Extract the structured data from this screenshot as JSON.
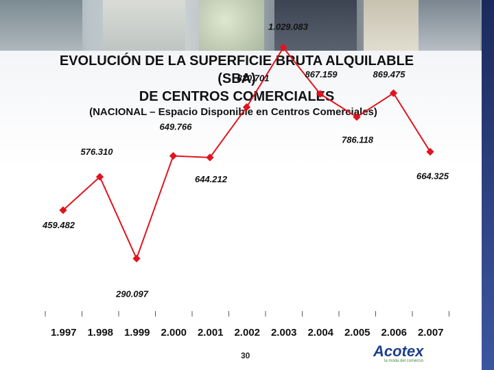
{
  "slide": {
    "title": "EVOLUCIÓN DE LA SUPERFICIE BRUTA ALQUILABLE\n(SBA)\nDE CENTROS COMERCIALES",
    "subtitle": "(NACIONAL – Espacio Disponible en Centros Comerciales)",
    "page_number": "30",
    "logo_text": "Acotex",
    "logo_subtext": "la moda del comercio"
  },
  "colors": {
    "line": "#e0141e",
    "accent_bar": "#1a2a5c"
  },
  "chart_data": {
    "type": "line",
    "categories": [
      "1.997",
      "1.998",
      "1.999",
      "2.000",
      "2.001",
      "2.002",
      "2.003",
      "2.004",
      "2.005",
      "2.006",
      "2.007"
    ],
    "values": [
      459482,
      576310,
      290097,
      649766,
      644212,
      820701,
      1029083,
      867159,
      786118,
      869475,
      664325
    ],
    "data_labels": [
      "459.482",
      "576.310",
      "290.097",
      "649.766",
      "644.212",
      "820.701",
      "1.029.083",
      "867.159",
      "786.118",
      "869.475",
      "664.325"
    ],
    "ylim": [
      250000,
      1100000
    ],
    "grid": false,
    "legend": "none"
  }
}
